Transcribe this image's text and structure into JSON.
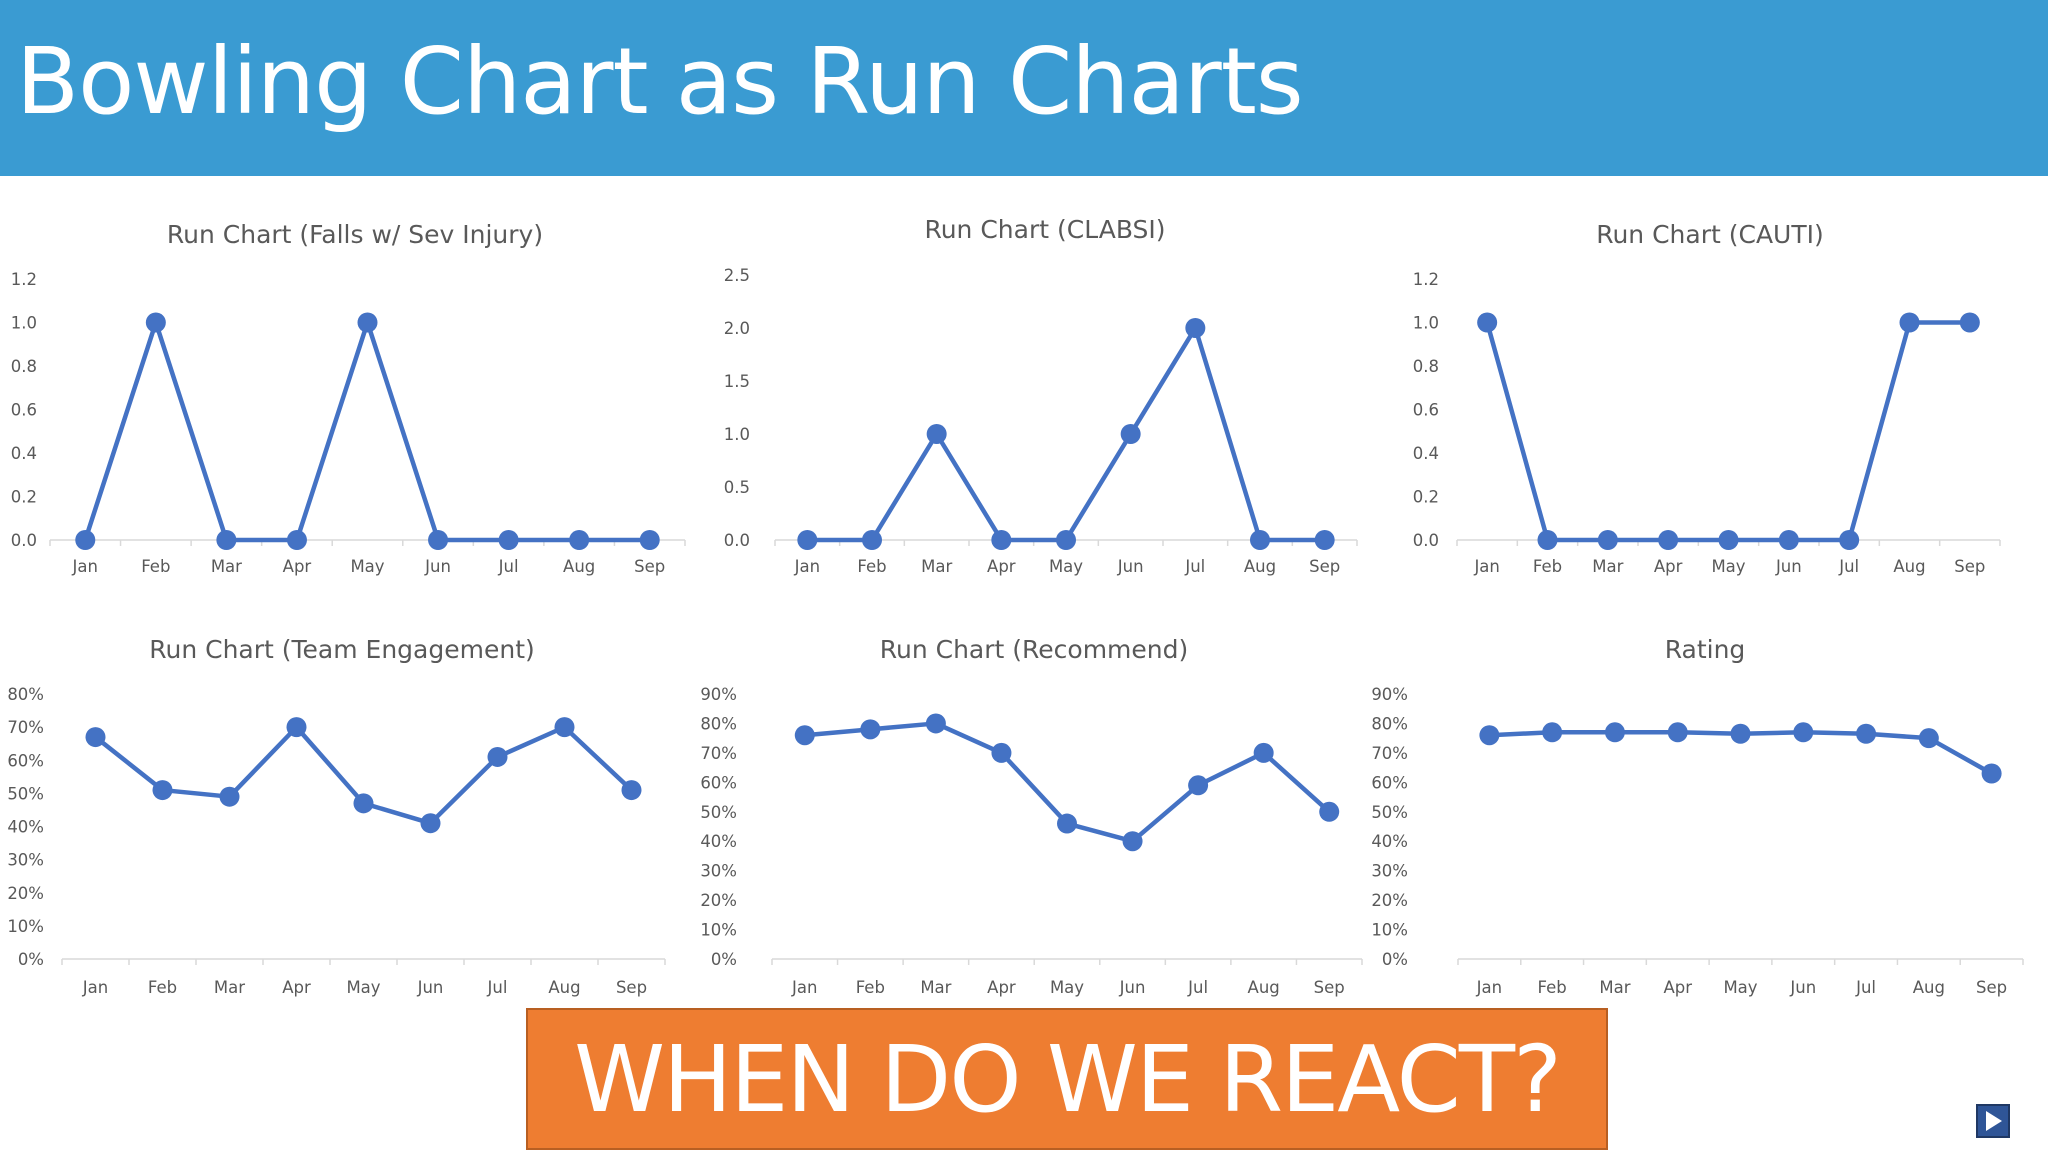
{
  "slide": {
    "title": "Bowling Chart as Run Charts",
    "callout": "WHEN DO WE REACT?",
    "colors": {
      "banner": "#3a9bd2",
      "callout": "#ee7d31",
      "series": "#4472c4"
    }
  },
  "nav": {
    "icon": "play-next-icon"
  },
  "chart_data": [
    {
      "type": "line",
      "title": "Run Chart (Falls w/ Sev Injury)",
      "categories": [
        "Jan",
        "Feb",
        "Mar",
        "Apr",
        "May",
        "Jun",
        "Jul",
        "Aug",
        "Sep"
      ],
      "values": [
        0,
        1,
        0,
        0,
        1,
        0,
        0,
        0,
        0
      ],
      "yticks": [
        "0.0",
        "0.2",
        "0.4",
        "0.6",
        "0.8",
        "1.0",
        "1.2"
      ],
      "ylim": [
        0,
        1.2
      ],
      "grid": false,
      "legend": "none"
    },
    {
      "type": "line",
      "title": "Run Chart (CLABSI)",
      "categories": [
        "Jan",
        "Feb",
        "Mar",
        "Apr",
        "May",
        "Jun",
        "Jul",
        "Aug",
        "Sep"
      ],
      "values": [
        0,
        0,
        1,
        0,
        0,
        1,
        2,
        0,
        0
      ],
      "yticks": [
        "0.0",
        "0.5",
        "1.0",
        "1.5",
        "2.0",
        "2.5"
      ],
      "ylim": [
        0,
        2.5
      ],
      "grid": false,
      "legend": "none"
    },
    {
      "type": "line",
      "title": "Run Chart (CAUTI)",
      "categories": [
        "Jan",
        "Feb",
        "Mar",
        "Apr",
        "May",
        "Jun",
        "Jul",
        "Aug",
        "Sep"
      ],
      "values": [
        1,
        0,
        0,
        0,
        0,
        0,
        0,
        1,
        1
      ],
      "yticks": [
        "0.0",
        "0.2",
        "0.4",
        "0.6",
        "0.8",
        "1.0",
        "1.2"
      ],
      "ylim": [
        0,
        1.2
      ],
      "grid": false,
      "legend": "none"
    },
    {
      "type": "line",
      "title": "Run Chart (Team Engagement)",
      "categories": [
        "Jan",
        "Feb",
        "Mar",
        "Apr",
        "May",
        "Jun",
        "Jul",
        "Aug",
        "Sep"
      ],
      "values": [
        67,
        51,
        49,
        70,
        47,
        41,
        61,
        70,
        51
      ],
      "yticks": [
        "0%",
        "10%",
        "20%",
        "30%",
        "40%",
        "50%",
        "60%",
        "70%",
        "80%"
      ],
      "ylim": [
        0,
        80
      ],
      "grid": false,
      "legend": "none"
    },
    {
      "type": "line",
      "title": "Run Chart (Recommend)",
      "categories": [
        "Jan",
        "Feb",
        "Mar",
        "Apr",
        "May",
        "Jun",
        "Jul",
        "Aug",
        "Sep"
      ],
      "values": [
        76,
        78,
        80,
        70,
        46,
        40,
        59,
        70,
        50
      ],
      "yticks": [
        "0%",
        "10%",
        "20%",
        "30%",
        "40%",
        "50%",
        "60%",
        "70%",
        "80%",
        "90%"
      ],
      "ylim": [
        0,
        90
      ],
      "grid": false,
      "legend": "none"
    },
    {
      "type": "line",
      "title": "Rating",
      "categories": [
        "Jan",
        "Feb",
        "Mar",
        "Apr",
        "May",
        "Jun",
        "Jul",
        "Aug",
        "Sep"
      ],
      "values": [
        76,
        77,
        77,
        77,
        76.5,
        77,
        76.5,
        75,
        63
      ],
      "yticks": [
        "0%",
        "10%",
        "20%",
        "30%",
        "40%",
        "50%",
        "60%",
        "70%",
        "80%",
        "90%"
      ],
      "ylim": [
        0,
        90
      ],
      "grid": false,
      "legend": "none"
    }
  ]
}
